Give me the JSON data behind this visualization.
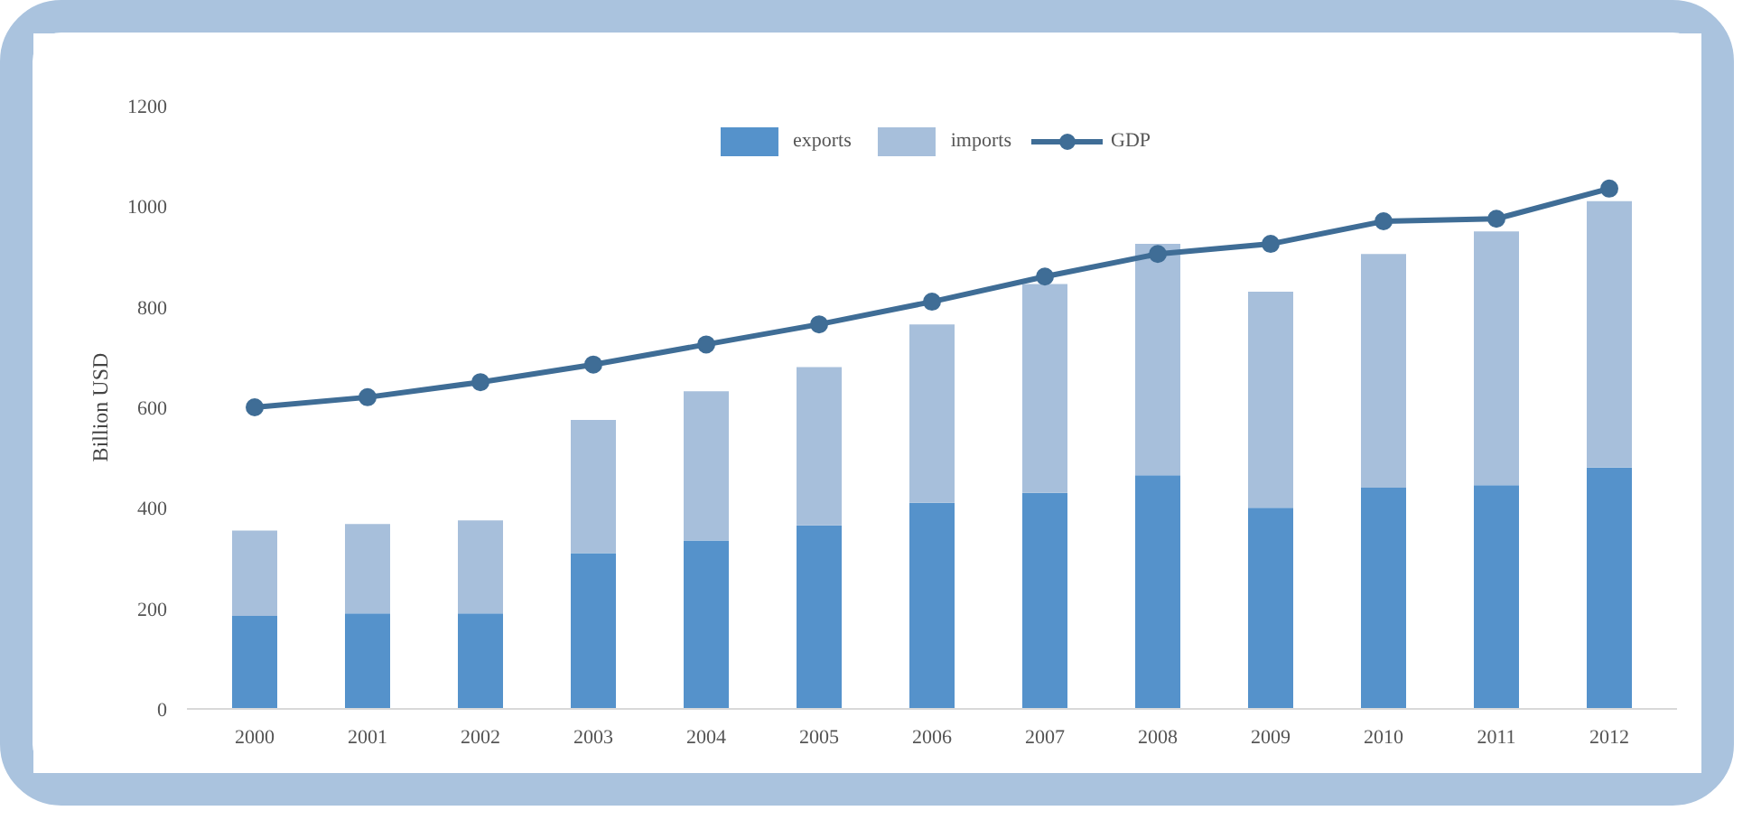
{
  "chart_data": {
    "type": "bar",
    "stacked": true,
    "ylabel": "Billion USD",
    "categories": [
      "2000",
      "2001",
      "2002",
      "2003",
      "2004",
      "2005",
      "2006",
      "2007",
      "2008",
      "2009",
      "2010",
      "2011",
      "2012"
    ],
    "series": [
      {
        "name": "exports",
        "color": "#5592cb",
        "values": [
          185,
          190,
          190,
          310,
          335,
          365,
          410,
          430,
          465,
          400,
          440,
          445,
          480
        ]
      },
      {
        "name": "imports",
        "color": "#a7bfdb",
        "values": [
          170,
          178,
          185,
          265,
          297,
          315,
          355,
          415,
          460,
          430,
          465,
          505,
          530
        ]
      },
      {
        "name": "GDP",
        "type": "line",
        "color": "#3f6d96",
        "marker": "circle",
        "values": [
          600,
          620,
          650,
          685,
          725,
          765,
          810,
          860,
          905,
          925,
          970,
          975,
          1035
        ]
      }
    ],
    "ylim": [
      0,
      1200
    ],
    "yticks": [
      0,
      200,
      400,
      600,
      800,
      1000,
      1200
    ],
    "grid": false,
    "legend": "top"
  }
}
